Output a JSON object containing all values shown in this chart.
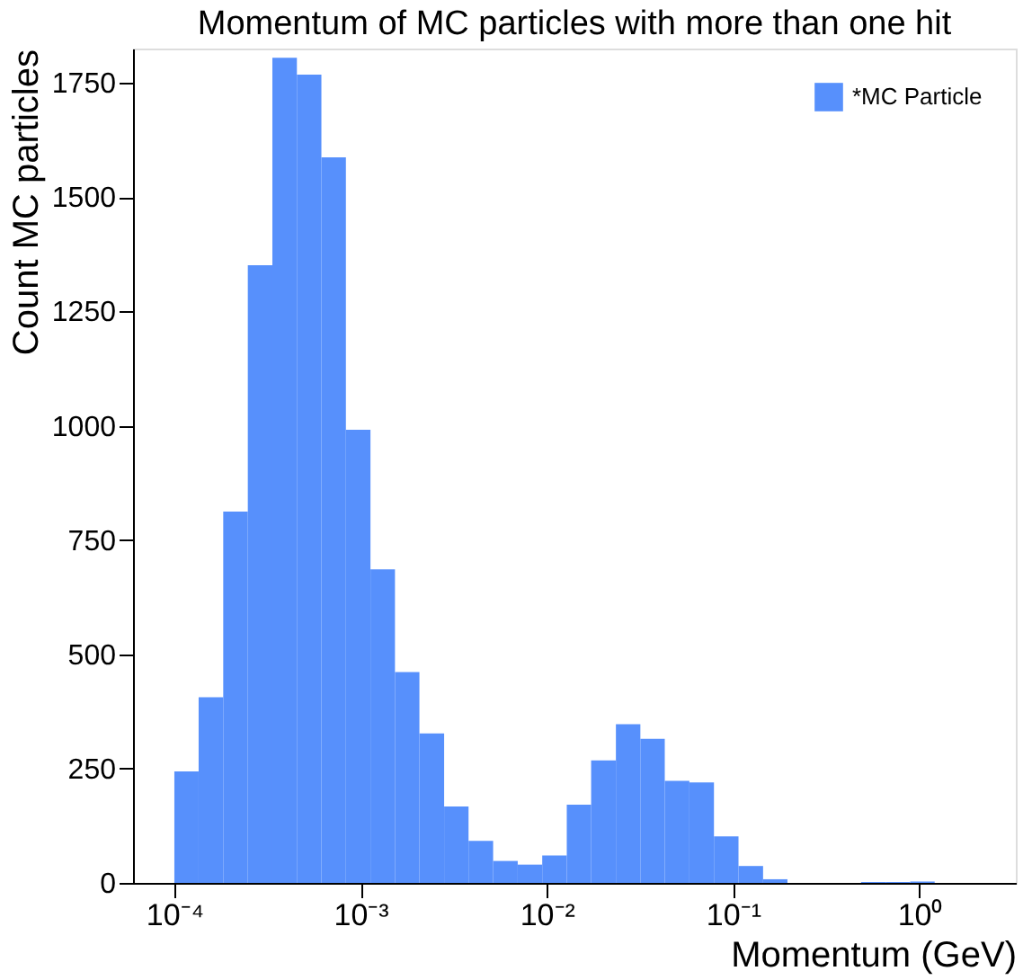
{
  "chart_data": {
    "type": "histogram",
    "title": "Momentum of MC particles with more than one hit",
    "xlabel": "Momentum (GeV)",
    "ylabel": "Count MC particles",
    "log": "x",
    "series": [
      {
        "name": "*MC Particle",
        "color": "#5790fc",
        "values": [
          244,
          406,
          812,
          1351,
          1805,
          1768,
          1587,
          991,
          686,
          461,
          327,
          167,
          92,
          48,
          40,
          60,
          171,
          268,
          347,
          315,
          223,
          220,
          102,
          37,
          8,
          0,
          2,
          2,
          3
        ]
      }
    ],
    "bins": [
      0.0001,
      0.000135,
      0.000183,
      0.000248,
      0.000336,
      0.000455,
      0.000616,
      0.000834,
      0.00113,
      0.00153,
      0.00207,
      0.00281,
      0.0038,
      0.00515,
      0.00698,
      0.00945,
      0.0128,
      0.0173,
      0.0235,
      0.0318,
      0.043,
      0.0583,
      0.079,
      0.107,
      0.145,
      0.196,
      0.487,
      0.66,
      0.894,
      1.21
    ],
    "xlim": [
      6e-05,
      3.3
    ],
    "ylim": [
      0,
      1825
    ],
    "xticks": [
      {
        "value": 0.0001,
        "label": "10⁻⁴"
      },
      {
        "value": 0.001,
        "label": "10⁻³"
      },
      {
        "value": 0.01,
        "label": "10⁻²"
      },
      {
        "value": 0.1,
        "label": "10⁻¹"
      },
      {
        "value": 1,
        "label": "10⁰"
      }
    ],
    "yticks": [
      0,
      250,
      500,
      750,
      1000,
      1250,
      1500,
      1750
    ],
    "legend": "top right",
    "grid": false
  }
}
